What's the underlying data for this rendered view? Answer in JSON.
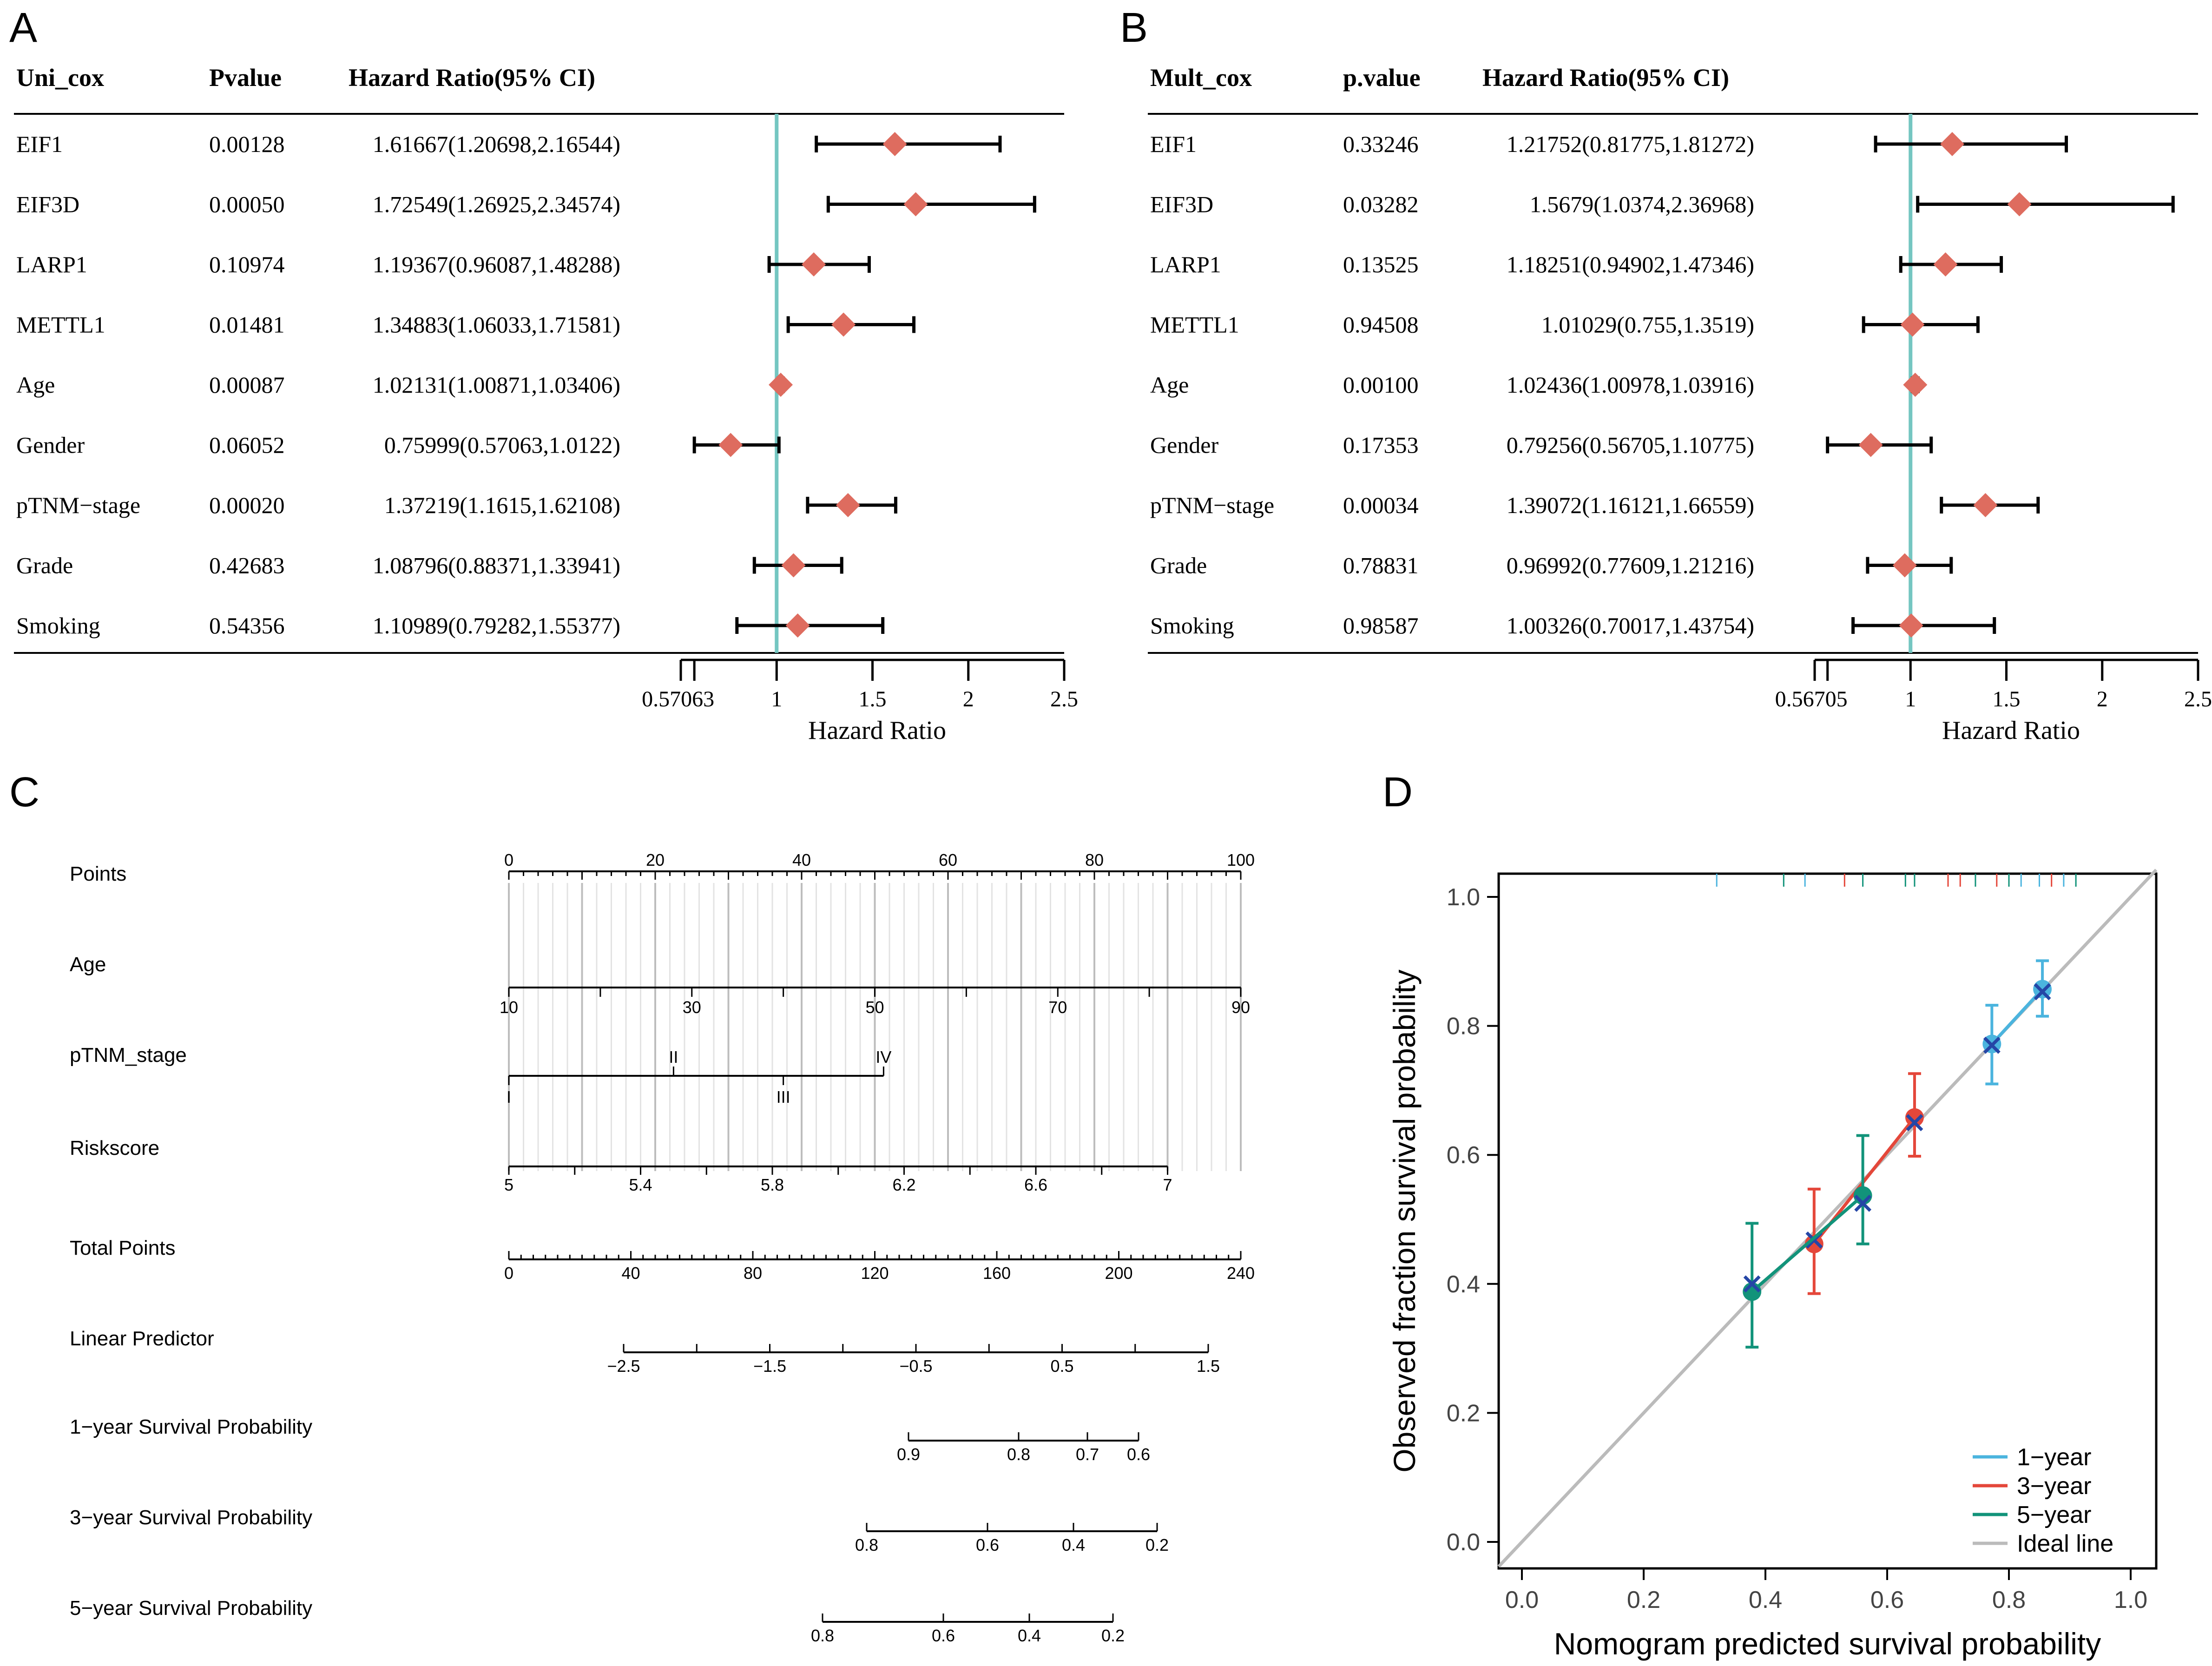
{
  "chart_data": [
    {
      "panel": "A",
      "type": "forest",
      "columns": [
        "Uni_cox",
        "Pvalue",
        "Hazard Ratio(95% CI)"
      ],
      "rows": [
        {
          "name": "EIF1",
          "p": "0.00128",
          "hr_text": "1.61667(1.20698,2.16544)",
          "hr": 1.61667,
          "lo": 1.20698,
          "hi": 2.16544
        },
        {
          "name": "EIF3D",
          "p": "0.00050",
          "hr_text": "1.72549(1.26925,2.34574)",
          "hr": 1.72549,
          "lo": 1.26925,
          "hi": 2.34574
        },
        {
          "name": "LARP1",
          "p": "0.10974",
          "hr_text": "1.19367(0.96087,1.48288)",
          "hr": 1.19367,
          "lo": 0.96087,
          "hi": 1.48288
        },
        {
          "name": "METTL1",
          "p": "0.01481",
          "hr_text": "1.34883(1.06033,1.71581)",
          "hr": 1.34883,
          "lo": 1.06033,
          "hi": 1.71581
        },
        {
          "name": "Age",
          "p": "0.00087",
          "hr_text": "1.02131(1.00871,1.03406)",
          "hr": 1.02131,
          "lo": 1.00871,
          "hi": 1.03406
        },
        {
          "name": "Gender",
          "p": "0.06052",
          "hr_text": "0.75999(0.57063,1.0122)",
          "hr": 0.75999,
          "lo": 0.57063,
          "hi": 1.0122
        },
        {
          "name": "pTNM−stage",
          "p": "0.00020",
          "hr_text": "1.37219(1.1615,1.62108)",
          "hr": 1.37219,
          "lo": 1.1615,
          "hi": 1.62108
        },
        {
          "name": "Grade",
          "p": "0.42683",
          "hr_text": "1.08796(0.88371,1.33941)",
          "hr": 1.08796,
          "lo": 0.88371,
          "hi": 1.33941
        },
        {
          "name": "Smoking",
          "p": "0.54356",
          "hr_text": "1.10989(0.79282,1.55377)",
          "hr": 1.10989,
          "lo": 0.79282,
          "hi": 1.55377
        }
      ],
      "x_ticks": [
        0.57063,
        1,
        1.5,
        2,
        2.5
      ],
      "x_tick_labels": [
        "0.57063",
        "1",
        "1.5",
        "2",
        "2.5"
      ],
      "x_minor_ticks": [
        0.5
      ],
      "xlim": [
        0.5,
        2.5
      ],
      "reference": 1,
      "xlabel": "Hazard Ratio"
    },
    {
      "panel": "B",
      "type": "forest",
      "columns": [
        "Mult_cox",
        "p.value",
        "Hazard Ratio(95% CI)"
      ],
      "rows": [
        {
          "name": "EIF1",
          "p": "0.33246",
          "hr_text": "1.21752(0.81775,1.81272)",
          "hr": 1.21752,
          "lo": 0.81775,
          "hi": 1.81272
        },
        {
          "name": "EIF3D",
          "p": "0.03282",
          "hr_text": "1.5679(1.0374,2.36968)",
          "hr": 1.5679,
          "lo": 1.0374,
          "hi": 2.36968
        },
        {
          "name": "LARP1",
          "p": "0.13525",
          "hr_text": "1.18251(0.94902,1.47346)",
          "hr": 1.18251,
          "lo": 0.94902,
          "hi": 1.47346
        },
        {
          "name": "METTL1",
          "p": "0.94508",
          "hr_text": "1.01029(0.755,1.3519)",
          "hr": 1.01029,
          "lo": 0.755,
          "hi": 1.3519
        },
        {
          "name": "Age",
          "p": "0.00100",
          "hr_text": "1.02436(1.00978,1.03916)",
          "hr": 1.02436,
          "lo": 1.00978,
          "hi": 1.03916
        },
        {
          "name": "Gender",
          "p": "0.17353",
          "hr_text": "0.79256(0.56705,1.10775)",
          "hr": 0.79256,
          "lo": 0.56705,
          "hi": 1.10775
        },
        {
          "name": "pTNM−stage",
          "p": "0.00034",
          "hr_text": "1.39072(1.16121,1.66559)",
          "hr": 1.39072,
          "lo": 1.16121,
          "hi": 1.66559
        },
        {
          "name": "Grade",
          "p": "0.78831",
          "hr_text": "0.96992(0.77609,1.21216)",
          "hr": 0.96992,
          "lo": 0.77609,
          "hi": 1.21216
        },
        {
          "name": "Smoking",
          "p": "0.98587",
          "hr_text": "1.00326(0.70017,1.43754)",
          "hr": 1.00326,
          "lo": 0.70017,
          "hi": 1.43754
        }
      ],
      "x_ticks": [
        0.56705,
        1,
        1.5,
        2,
        2.5
      ],
      "x_tick_labels": [
        "0.56705",
        "1",
        "1.5",
        "2",
        "2.5"
      ],
      "x_minor_ticks": [
        0.5
      ],
      "xlim": [
        0.5,
        2.5
      ],
      "reference": 1,
      "xlabel": "Hazard Ratio"
    },
    {
      "panel": "C",
      "type": "nomogram",
      "scales": [
        {
          "label": "Points",
          "kind": "points",
          "min": 0,
          "max": 100,
          "major": [
            0,
            20,
            40,
            60,
            80,
            100
          ],
          "labels": [
            "0",
            "20",
            "40",
            "60",
            "80",
            "100"
          ],
          "minor_step": 2
        },
        {
          "label": "Age",
          "kind": "variable",
          "min": 10,
          "max": 90,
          "ticks": [
            10,
            20,
            30,
            40,
            50,
            60,
            70,
            80,
            90
          ],
          "labels": [
            {
              "v": 10,
              "t": "10",
              "pos": "below"
            },
            {
              "v": 30,
              "t": "30",
              "pos": "below"
            },
            {
              "v": 50,
              "t": "50",
              "pos": "below"
            },
            {
              "v": 70,
              "t": "70",
              "pos": "below"
            },
            {
              "v": 90,
              "t": "90",
              "pos": "below"
            }
          ]
        },
        {
          "label": "pTNM_stage",
          "kind": "categorical",
          "points_at": [
            0,
            22.5,
            37.5,
            51.2
          ],
          "labels": [
            {
              "v": 0,
              "t": "I",
              "pos": "below"
            },
            {
              "v": 22.5,
              "t": "II",
              "pos": "above"
            },
            {
              "v": 37.5,
              "t": "III",
              "pos": "below"
            },
            {
              "v": 51.2,
              "t": "IV",
              "pos": "above"
            }
          ]
        },
        {
          "label": "Riskscore",
          "kind": "variable",
          "min": 5,
          "max": 7,
          "ticks": [
            5,
            5.2,
            5.4,
            5.6,
            5.8,
            6,
            6.2,
            6.4,
            6.6,
            6.8,
            7
          ],
          "labels": [
            {
              "v": 5,
              "t": "5"
            },
            {
              "v": 5.4,
              "t": "5.4"
            },
            {
              "v": 5.8,
              "t": "5.8"
            },
            {
              "v": 6.2,
              "t": "6.2"
            },
            {
              "v": 6.6,
              "t": "6.6"
            },
            {
              "v": 7,
              "t": "7"
            }
          ]
        },
        {
          "label": "Total Points",
          "kind": "total",
          "min": 0,
          "max": 240,
          "major": [
            0,
            40,
            80,
            120,
            160,
            200,
            240
          ],
          "labels": [
            "0",
            "40",
            "80",
            "120",
            "160",
            "200",
            "240"
          ],
          "minor_step": 4
        },
        {
          "label": "Linear Predictor",
          "kind": "lp",
          "labels": [
            {
              "v": -2.5,
              "t": "−2.5"
            },
            {
              "v": -1.5,
              "t": "−1.5"
            },
            {
              "v": -0.5,
              "t": "−0.5"
            },
            {
              "v": 0.5,
              "t": "0.5"
            },
            {
              "v": 1.5,
              "t": "1.5"
            }
          ],
          "ticks": [
            -2.5,
            -2,
            -1.5,
            -1,
            -0.5,
            0,
            0.5,
            1,
            1.5
          ]
        },
        {
          "label": "1−year Survival Probability",
          "kind": "surv",
          "labels": [
            {
              "v": 0.9,
              "t": "0.9"
            },
            {
              "v": 0.8,
              "t": "0.8"
            },
            {
              "v": 0.7,
              "t": "0.7"
            },
            {
              "v": 0.6,
              "t": "0.6"
            }
          ]
        },
        {
          "label": "3−year Survival Probability",
          "kind": "surv",
          "labels": [
            {
              "v": 0.8,
              "t": "0.8"
            },
            {
              "v": 0.6,
              "t": "0.6"
            },
            {
              "v": 0.4,
              "t": "0.4"
            },
            {
              "v": 0.2,
              "t": "0.2"
            }
          ]
        },
        {
          "label": "5−year Survival Probability",
          "kind": "surv",
          "labels": [
            {
              "v": 0.8,
              "t": "0.8"
            },
            {
              "v": 0.6,
              "t": "0.6"
            },
            {
              "v": 0.4,
              "t": "0.4"
            },
            {
              "v": 0.2,
              "t": "0.2"
            }
          ]
        }
      ]
    },
    {
      "panel": "D",
      "type": "line",
      "xlabel": "Nomogram predicted survival probability",
      "ylabel": "Observed fraction survival probability",
      "xlim": [
        0,
        1
      ],
      "ylim": [
        0,
        1
      ],
      "x_ticks": [
        "0.0",
        "0.2",
        "0.4",
        "0.6",
        "0.8",
        "1.0"
      ],
      "y_ticks": [
        "0.0",
        "0.2",
        "0.4",
        "0.6",
        "0.8",
        "1.0"
      ],
      "series": [
        {
          "name": "1−year",
          "color": "#4BB4DE",
          "points": [
            {
              "x": 0.772,
              "y": 0.772,
              "lo": 0.71,
              "hi": 0.832
            },
            {
              "x": 0.855,
              "y": 0.857,
              "lo": 0.815,
              "hi": 0.901
            }
          ],
          "crosses": [
            {
              "x": 0.772,
              "y": 0.77
            },
            {
              "x": 0.855,
              "y": 0.853
            }
          ]
        },
        {
          "name": "3−year",
          "color": "#E4473A",
          "points": [
            {
              "x": 0.48,
              "y": 0.462,
              "lo": 0.385,
              "hi": 0.547
            },
            {
              "x": 0.645,
              "y": 0.658,
              "lo": 0.598,
              "hi": 0.726
            }
          ],
          "crosses": [
            {
              "x": 0.48,
              "y": 0.468
            },
            {
              "x": 0.645,
              "y": 0.65
            }
          ]
        },
        {
          "name": "5−year",
          "color": "#12937A",
          "points": [
            {
              "x": 0.378,
              "y": 0.388,
              "lo": 0.302,
              "hi": 0.494
            },
            {
              "x": 0.56,
              "y": 0.537,
              "lo": 0.462,
              "hi": 0.63
            }
          ],
          "crosses": [
            {
              "x": 0.378,
              "y": 0.4
            },
            {
              "x": 0.56,
              "y": 0.525
            }
          ]
        },
        {
          "name": "Ideal line",
          "color": "#BBBBBB",
          "points": []
        }
      ],
      "rug": [
        {
          "x": 0.32,
          "color": "#4BB4DE"
        },
        {
          "x": 0.43,
          "color": "#12937A"
        },
        {
          "x": 0.465,
          "color": "#4BB4DE"
        },
        {
          "x": 0.53,
          "color": "#E4473A"
        },
        {
          "x": 0.56,
          "color": "#12937A"
        },
        {
          "x": 0.63,
          "color": "#12937A"
        },
        {
          "x": 0.645,
          "color": "#12937A"
        },
        {
          "x": 0.7,
          "color": "#E4473A"
        },
        {
          "x": 0.72,
          "color": "#E4473A"
        },
        {
          "x": 0.745,
          "color": "#12937A"
        },
        {
          "x": 0.78,
          "color": "#E4473A"
        },
        {
          "x": 0.8,
          "color": "#12937A"
        },
        {
          "x": 0.82,
          "color": "#4BB4DE"
        },
        {
          "x": 0.85,
          "color": "#4BB4DE"
        },
        {
          "x": 0.87,
          "color": "#E4473A"
        },
        {
          "x": 0.89,
          "color": "#4BB4DE"
        },
        {
          "x": 0.91,
          "color": "#12937A"
        }
      ]
    }
  ],
  "panels": {
    "a": "A",
    "b": "B",
    "c": "C",
    "d": "D"
  },
  "colors": {
    "diamond": "#DE6C5F",
    "reference": "#74C6C1",
    "ideal": "#BBBBBB",
    "grid": "#CFCFCF"
  }
}
